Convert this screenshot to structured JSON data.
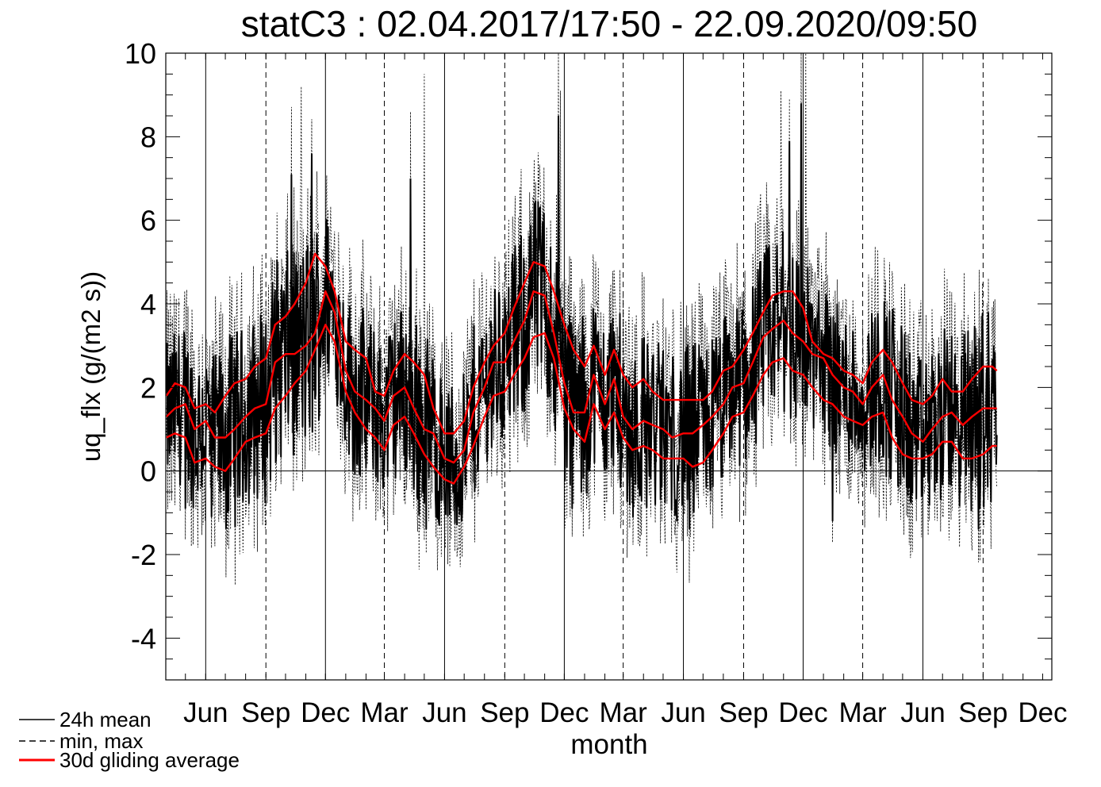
{
  "chart_data": {
    "type": "line",
    "title": "statC3 : 02.04.2017/17:50 - 22.09.2020/09:50",
    "xlabel": "month",
    "ylabel": "uq_flx (g/(m2 s))",
    "ylim": [
      -5,
      10
    ],
    "yticks": [
      -4,
      -2,
      0,
      2,
      4,
      6,
      8,
      10
    ],
    "x_axis_range": [
      "2017-04-01",
      "2020-12-15"
    ],
    "xtick_labels": [
      "Jun",
      "Sep",
      "Dec",
      "Mar",
      "Jun",
      "Sep",
      "Dec",
      "Mar",
      "Jun",
      "Sep",
      "Dec",
      "Mar",
      "Jun",
      "Sep",
      "Dec"
    ],
    "year_boundaries": [
      "2017-06-01",
      "2017-12-01",
      "2018-06-01",
      "2018-12-01",
      "2019-06-01",
      "2019-12-01",
      "2020-06-01"
    ],
    "quarter_boundaries": [
      "2017-09-01",
      "2018-03-01",
      "2018-09-01",
      "2019-03-01",
      "2019-09-01",
      "2020-03-01",
      "2020-09-01"
    ],
    "grid": false,
    "zero_line": true,
    "legend_position": "bottom-left",
    "legend": [
      {
        "label": "24h mean",
        "style": "solid",
        "color": "#000000"
      },
      {
        "label": "min, max",
        "style": "dashed",
        "color": "#000000"
      },
      {
        "label": "30d gliding average",
        "style": "solid",
        "color": "#ff0000"
      }
    ],
    "series": [
      {
        "name": "30d gliding average",
        "color": "#ff0000",
        "x": [
          "2017-04-02",
          "2017-04-15",
          "2017-05-01",
          "2017-05-15",
          "2017-06-01",
          "2017-06-15",
          "2017-07-01",
          "2017-07-15",
          "2017-08-01",
          "2017-08-15",
          "2017-09-01",
          "2017-09-15",
          "2017-10-01",
          "2017-10-15",
          "2017-11-01",
          "2017-11-15",
          "2017-12-01",
          "2017-12-15",
          "2018-01-01",
          "2018-01-15",
          "2018-02-01",
          "2018-02-15",
          "2018-03-01",
          "2018-03-15",
          "2018-04-01",
          "2018-04-15",
          "2018-05-01",
          "2018-05-15",
          "2018-06-01",
          "2018-06-15",
          "2018-07-01",
          "2018-07-15",
          "2018-08-01",
          "2018-08-15",
          "2018-09-01",
          "2018-09-15",
          "2018-10-01",
          "2018-10-15",
          "2018-11-01",
          "2018-11-15",
          "2018-12-01",
          "2018-12-15",
          "2019-01-01",
          "2019-01-15",
          "2019-02-01",
          "2019-02-15",
          "2019-03-01",
          "2019-03-15",
          "2019-04-01",
          "2019-04-15",
          "2019-05-01",
          "2019-05-15",
          "2019-06-01",
          "2019-06-15",
          "2019-07-01",
          "2019-07-15",
          "2019-08-01",
          "2019-08-15",
          "2019-09-01",
          "2019-09-15",
          "2019-10-01",
          "2019-10-15",
          "2019-11-01",
          "2019-11-15",
          "2019-12-01",
          "2019-12-15",
          "2020-01-01",
          "2020-01-15",
          "2020-02-01",
          "2020-02-15",
          "2020-03-01",
          "2020-03-15",
          "2020-04-01",
          "2020-04-15",
          "2020-05-01",
          "2020-05-15",
          "2020-06-01",
          "2020-06-15",
          "2020-07-01",
          "2020-07-15",
          "2020-08-01",
          "2020-08-15",
          "2020-09-01",
          "2020-09-15",
          "2020-09-22"
        ],
        "mean": [
          1.3,
          1.5,
          1.6,
          1.0,
          1.2,
          0.8,
          0.8,
          1.0,
          1.3,
          1.5,
          1.6,
          2.6,
          2.8,
          2.8,
          3.0,
          3.3,
          4.3,
          3.8,
          2.4,
          1.9,
          1.7,
          1.5,
          1.2,
          1.8,
          2.0,
          1.5,
          1.0,
          0.9,
          0.3,
          0.2,
          0.5,
          1.4,
          2.0,
          2.6,
          2.6,
          3.1,
          3.6,
          4.3,
          4.2,
          3.3,
          2.1,
          1.4,
          1.4,
          2.3,
          1.6,
          2.2,
          1.3,
          1.0,
          1.2,
          1.1,
          1.0,
          0.8,
          0.9,
          0.9,
          1.1,
          1.3,
          1.6,
          2.0,
          2.1,
          2.6,
          3.2,
          3.4,
          3.6,
          3.3,
          3.1,
          2.8,
          2.7,
          2.3,
          2.0,
          1.9,
          1.6,
          2.0,
          2.3,
          1.7,
          1.3,
          0.9,
          0.7,
          1.0,
          1.3,
          1.4,
          1.1,
          1.3,
          1.5,
          1.5,
          1.5
        ],
        "upper": [
          1.8,
          2.1,
          2.0,
          1.5,
          1.6,
          1.4,
          1.8,
          2.1,
          2.2,
          2.5,
          2.7,
          3.5,
          3.7,
          4.0,
          4.5,
          5.2,
          4.9,
          4.3,
          3.1,
          2.9,
          2.7,
          1.9,
          1.8,
          2.4,
          2.8,
          2.6,
          2.3,
          1.5,
          0.9,
          0.9,
          1.2,
          2.0,
          2.6,
          3.0,
          3.3,
          3.9,
          4.5,
          5.0,
          4.9,
          4.3,
          3.5,
          2.9,
          2.5,
          3.0,
          2.3,
          2.9,
          2.3,
          2.0,
          2.2,
          1.9,
          1.7,
          1.7,
          1.7,
          1.7,
          1.7,
          1.9,
          2.4,
          2.5,
          2.9,
          3.3,
          3.8,
          4.2,
          4.3,
          4.3,
          3.9,
          3.1,
          2.8,
          2.7,
          2.4,
          2.3,
          2.1,
          2.6,
          2.9,
          2.6,
          2.1,
          1.7,
          1.6,
          1.8,
          2.2,
          1.9,
          1.9,
          2.2,
          2.5,
          2.5,
          2.4
        ],
        "lower": [
          0.8,
          0.9,
          0.8,
          0.2,
          0.3,
          0.1,
          0.0,
          0.3,
          0.7,
          0.8,
          0.9,
          1.5,
          1.8,
          2.1,
          2.4,
          2.9,
          3.5,
          3.1,
          1.9,
          1.4,
          1.0,
          0.8,
          0.5,
          1.1,
          1.3,
          0.9,
          0.4,
          0.1,
          -0.2,
          -0.3,
          0.1,
          0.6,
          1.3,
          1.8,
          1.9,
          2.3,
          2.7,
          3.2,
          3.3,
          2.7,
          1.5,
          1.0,
          0.7,
          1.6,
          1.0,
          1.4,
          0.8,
          0.5,
          0.6,
          0.5,
          0.3,
          0.3,
          0.3,
          0.1,
          0.2,
          0.5,
          0.9,
          1.3,
          1.4,
          1.8,
          2.3,
          2.6,
          2.7,
          2.4,
          2.3,
          2.0,
          1.7,
          1.6,
          1.3,
          1.2,
          1.1,
          1.3,
          1.4,
          0.8,
          0.4,
          0.3,
          0.3,
          0.4,
          0.7,
          0.7,
          0.3,
          0.3,
          0.4,
          0.6,
          0.6
        ]
      },
      {
        "name": "24h mean",
        "color": "#000000",
        "sampling": "daily, 2017-04-02 to 2020-09-22 (noisy series oscillating around the gliding average)",
        "extremes": [
          {
            "x": "2017-05-01",
            "y": -0.9
          },
          {
            "x": "2017-06-10",
            "y": -1.1
          },
          {
            "x": "2017-10-10",
            "y": 7.1
          },
          {
            "x": "2017-11-10",
            "y": 7.6
          },
          {
            "x": "2018-04-10",
            "y": 7.0
          },
          {
            "x": "2018-06-20",
            "y": -1.3
          },
          {
            "x": "2018-11-22",
            "y": 8.5
          },
          {
            "x": "2019-06-10",
            "y": -1.4
          },
          {
            "x": "2019-11-10",
            "y": 7.9
          },
          {
            "x": "2019-11-28",
            "y": 8.8
          },
          {
            "x": "2020-01-15",
            "y": -1.2
          },
          {
            "x": "2020-08-25",
            "y": -1.4
          }
        ]
      },
      {
        "name": "min, max",
        "color": "#000000",
        "style": "dashed",
        "sampling": "daily extremes envelope around the 24h mean",
        "extremes": [
          {
            "x": "2017-06-15",
            "y": -1.8
          },
          {
            "x": "2017-10-25",
            "y": 9.2
          },
          {
            "x": "2018-05-01",
            "y": 9.5
          },
          {
            "x": "2018-06-25",
            "y": -2.3
          },
          {
            "x": "2018-11-25",
            "y": 9.1
          },
          {
            "x": "2019-10-28",
            "y": 9.1
          },
          {
            "x": "2019-12-05",
            "y": 10.0
          },
          {
            "x": "2020-08-15",
            "y": -1.9
          }
        ]
      }
    ]
  }
}
